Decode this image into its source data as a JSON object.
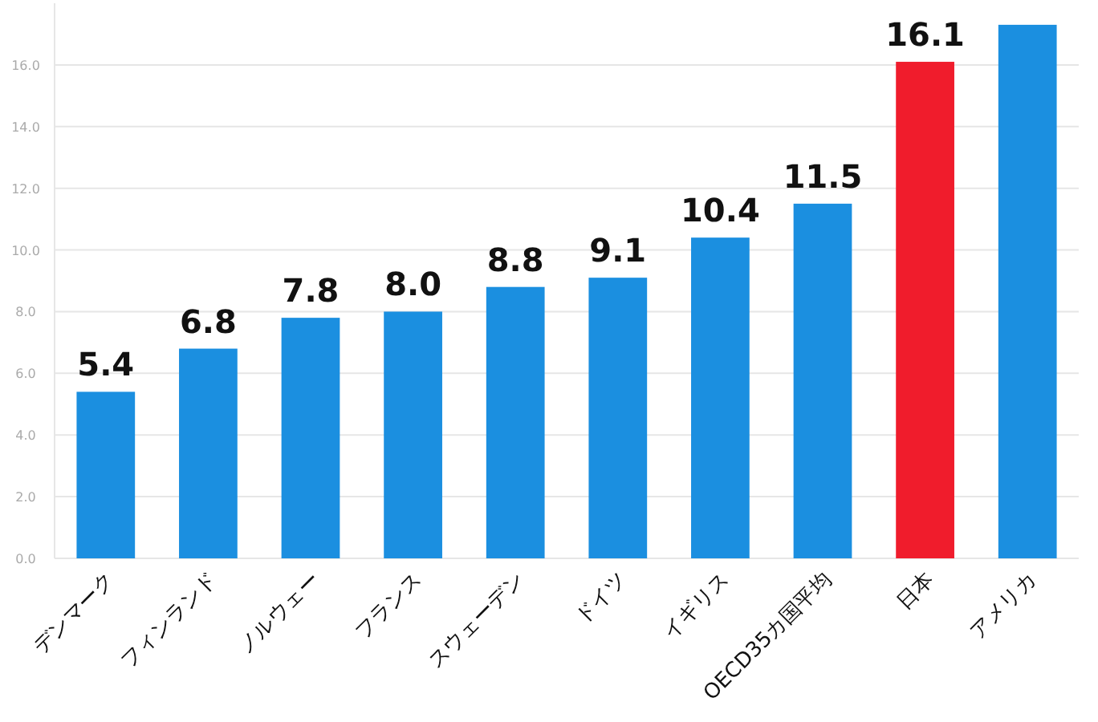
{
  "chart_data": {
    "type": "bar",
    "categories": [
      "デンマーク",
      "フィンランド",
      "ノルウェー",
      "フランス",
      "スウェーデン",
      "ドイツ",
      "イギリス",
      "OECD35カ国平均",
      "日本",
      "アメリカ"
    ],
    "values": [
      5.4,
      6.8,
      7.8,
      8.0,
      8.8,
      9.1,
      10.4,
      11.5,
      16.1,
      17.3
    ],
    "colors": [
      "#1b8fe0",
      "#1b8fe0",
      "#1b8fe0",
      "#1b8fe0",
      "#1b8fe0",
      "#1b8fe0",
      "#1b8fe0",
      "#1b8fe0",
      "#f01c2c",
      "#1b8fe0"
    ],
    "value_labels": [
      "5.4",
      "6.8",
      "7.8",
      "8.0",
      "8.8",
      "9.1",
      "10.4",
      "11.5",
      "16.1",
      null
    ],
    "ylim": [
      0,
      18
    ],
    "yticks": [
      {
        "value": 0,
        "label": "0.0"
      },
      {
        "value": 2,
        "label": "2.0"
      },
      {
        "value": 4,
        "label": "4.0"
      },
      {
        "value": 6,
        "label": "6.0"
      },
      {
        "value": 8,
        "label": "8.0"
      },
      {
        "value": 10,
        "label": "10.0"
      },
      {
        "value": 12,
        "label": "12.0"
      },
      {
        "value": 14,
        "label": "14.0"
      },
      {
        "value": 16,
        "label": "16.0"
      }
    ],
    "grid": "y"
  }
}
